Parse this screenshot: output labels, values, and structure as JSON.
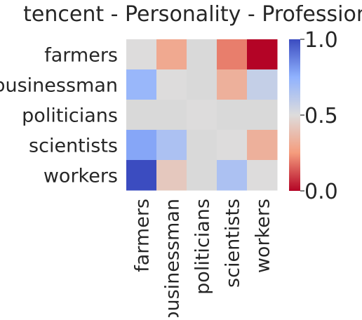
{
  "chart_data": {
    "type": "heatmap",
    "title": "tencent - Personality - Profession",
    "xlabel": "",
    "ylabel": "",
    "rows": [
      "farmers",
      "businessman",
      "politicians",
      "scientists",
      "workers"
    ],
    "columns": [
      "farmers",
      "businessman",
      "politicians",
      "scientists",
      "workers"
    ],
    "values": [
      [
        0.5,
        0.3,
        null,
        0.2,
        0.0
      ],
      [
        0.72,
        0.5,
        null,
        0.33,
        0.58
      ],
      [
        null,
        null,
        0.5,
        null,
        null
      ],
      [
        0.78,
        0.66,
        null,
        0.5,
        0.33
      ],
      [
        1.0,
        0.42,
        null,
        0.66,
        0.5
      ]
    ],
    "missing_color": "#d9d9d9",
    "colormap": "coolwarm",
    "vmin": 0.0,
    "vmax": 1.0,
    "colorbar": {
      "ticks": [
        0.0,
        0.5,
        1.0
      ],
      "tick_labels": [
        "0.0",
        "0.5",
        "1.0"
      ]
    }
  }
}
